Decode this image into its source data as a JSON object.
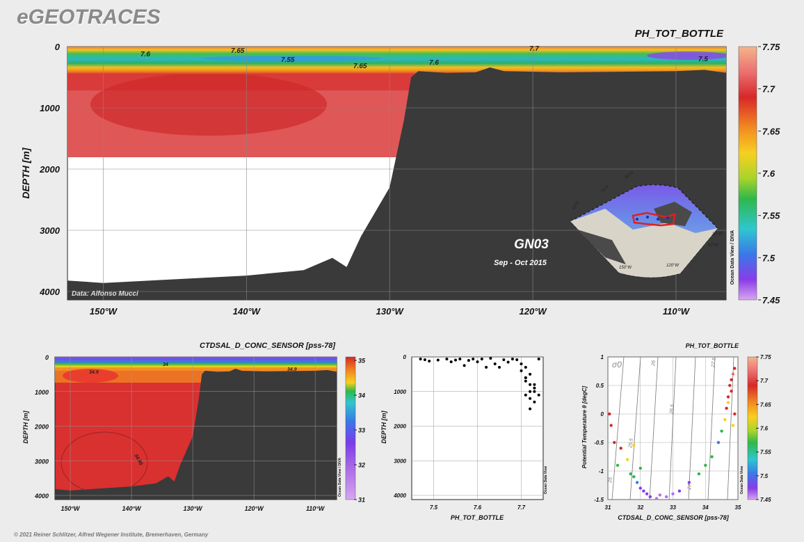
{
  "header": {
    "logo": "eGEOTRACES"
  },
  "footer": {
    "credit": "© 2021 Reiner Schlitzer, Alfred Wegener Institute, Bremerhaven, Germany"
  },
  "main_section": {
    "title": "PH_TOT_BOTTLE",
    "ylabel": "DEPTH [m]",
    "ylim": [
      0,
      4000
    ],
    "yticks": [
      "0",
      "1000",
      "2000",
      "3000",
      "4000"
    ],
    "xticks": [
      "150°W",
      "140°W",
      "130°W",
      "120°W",
      "110°W"
    ],
    "xtick_values": [
      -150,
      -140,
      -130,
      -120,
      -110
    ],
    "xlim": [
      -152.5,
      -106.5
    ],
    "contour_labels": [
      "7.6",
      "7.65",
      "7.55",
      "7.65",
      "7.6",
      "7.7",
      "7.5"
    ],
    "cruise": "GN03",
    "dates": "Sep - Oct 2015",
    "data_credit": "Data: Alfonso Mucci",
    "odv_credit": "Ocean Data View / DIVA",
    "map_lat_labels": [
      "80°N",
      "75°N",
      "65°N"
    ],
    "map_lon_labels": [
      "150°W",
      "120°W",
      "60°W",
      "30°W"
    ]
  },
  "colorbar_main": {
    "ticks": [
      "7.75",
      "7.7",
      "7.65",
      "7.6",
      "7.55",
      "7.5",
      "7.45"
    ],
    "range": [
      7.45,
      7.75
    ]
  },
  "sal_section": {
    "title": "CTDSAL_D_CONC_SENSOR [pss-78]",
    "ylabel": "DEPTH [m]",
    "yticks": [
      "0",
      "1000",
      "2000",
      "3000",
      "4000"
    ],
    "xticks": [
      "150°W",
      "140°W",
      "130°W",
      "120°W",
      "110°W"
    ],
    "contour_labels": [
      "34.9",
      "34",
      "34.9",
      "34.95"
    ],
    "odv_credit": "Ocean Data View / DIVA"
  },
  "colorbar_sal": {
    "ticks": [
      "35",
      "34",
      "33",
      "32",
      "31"
    ],
    "range": [
      31,
      35
    ]
  },
  "scatter_panel": {
    "xlabel": "PH_TOT_BOTTLE",
    "ylabel": "DEPTH [m]",
    "xticks": [
      "7.5",
      "7.6",
      "7.7"
    ],
    "yticks": [
      "0",
      "1000",
      "2000",
      "3000",
      "4000"
    ],
    "odv_credit": "Ocean Data View"
  },
  "ts_panel": {
    "title": "PH_TOT_BOTTLE",
    "xlabel": "CTDSAL_D_CONC_SENSOR [pss-78]",
    "ylabel": "Potential Temperature θ [degC]",
    "xticks": [
      "31",
      "32",
      "33",
      "34",
      "35"
    ],
    "yticks": [
      "1",
      "0.5",
      "0",
      "-0.5",
      "-1",
      "-1.5"
    ],
    "sigma_label": "σ0",
    "isopycnal_labels": [
      "25",
      "25.5",
      "26",
      "26.5",
      "27",
      "27.5"
    ],
    "odv_credit": "Ocean Data View"
  },
  "colorbar_ts": {
    "ticks": [
      "7.75",
      "7.7",
      "7.65",
      "7.6",
      "7.55",
      "7.5",
      "7.45"
    ]
  },
  "chart_data": [
    {
      "type": "heatmap",
      "title": "PH_TOT_BOTTLE",
      "ylabel": "DEPTH [m]",
      "xlim": [
        -152.5,
        -106.5
      ],
      "ylim": [
        4000,
        0
      ],
      "colorbar_range": [
        7.45,
        7.75
      ],
      "seafloor_depth": {
        "lon": [
          -152.5,
          -150,
          -145,
          -140,
          -136,
          -134,
          -133,
          -132,
          -131,
          -130,
          -129,
          -128.5,
          -128,
          -126,
          -124,
          -123,
          -122,
          -118,
          -114,
          -110,
          -108,
          -106.5
        ],
        "depth": [
          3820,
          3860,
          3800,
          3740,
          3650,
          3450,
          3600,
          3100,
          2700,
          2300,
          1200,
          500,
          400,
          430,
          420,
          340,
          400,
          420,
          410,
          400,
          380,
          430
        ]
      }
    },
    {
      "type": "heatmap",
      "title": "CTDSAL_D_CONC_SENSOR [pss-78]",
      "ylabel": "DEPTH [m]",
      "colorbar_range": [
        31,
        35
      ]
    },
    {
      "type": "scatter",
      "xlabel": "PH_TOT_BOTTLE",
      "ylabel": "DEPTH [m]",
      "x": [
        7.47,
        7.48,
        7.49,
        7.51,
        7.53,
        7.54,
        7.55,
        7.56,
        7.57,
        7.58,
        7.59,
        7.6,
        7.61,
        7.62,
        7.63,
        7.64,
        7.65,
        7.66,
        7.67,
        7.68,
        7.69,
        7.7,
        7.71,
        7.71,
        7.72,
        7.72,
        7.73,
        7.73,
        7.74,
        7.74,
        7.7,
        7.71,
        7.72,
        7.71,
        7.72,
        7.73,
        7.72,
        7.73,
        7.71
      ],
      "y": [
        60,
        80,
        120,
        90,
        60,
        140,
        90,
        60,
        250,
        100,
        60,
        140,
        60,
        300,
        40,
        200,
        300,
        80,
        150,
        60,
        80,
        400,
        600,
        700,
        800,
        500,
        900,
        1000,
        1100,
        60,
        200,
        300,
        1500,
        1100,
        1200,
        1300,
        1000,
        800,
        600
      ],
      "xlim": [
        7.45,
        7.75
      ],
      "ylim": [
        4000,
        0
      ]
    },
    {
      "type": "scatter",
      "title": "PH_TOT_BOTTLE",
      "xlabel": "CTDSAL_D_CONC_SENSOR [pss-78]",
      "ylabel": "Potential Temperature θ [degC]",
      "xlim": [
        31,
        35
      ],
      "ylim": [
        -1.5,
        1
      ],
      "x": [
        31.1,
        31.2,
        31.4,
        31.6,
        31.7,
        31.8,
        31.9,
        32.0,
        32.1,
        32.2,
        32.3,
        32.5,
        32.6,
        32.8,
        33.0,
        33.2,
        33.5,
        33.8,
        34.0,
        34.2,
        34.4,
        34.5,
        34.6,
        34.65,
        34.7,
        34.75,
        34.8,
        34.85,
        34.9,
        34.7,
        34.8,
        34.85,
        34.9,
        31.05,
        31.3,
        31.8,
        32.0
      ],
      "y": [
        -0.2,
        -0.5,
        -0.6,
        -0.8,
        -1.05,
        -1.1,
        -1.2,
        -1.3,
        -1.35,
        -1.4,
        -1.45,
        -1.48,
        -1.42,
        -1.45,
        -1.4,
        -1.35,
        -1.2,
        -1.05,
        -0.9,
        -0.75,
        -0.5,
        -0.3,
        -0.1,
        0.1,
        0.3,
        0.5,
        0.6,
        0.7,
        0.8,
        0.2,
        0.4,
        -0.2,
        0.0,
        0.0,
        -0.9,
        -0.55,
        -0.95
      ],
      "ph": [
        7.7,
        7.7,
        7.68,
        7.65,
        7.6,
        7.62,
        7.55,
        7.5,
        7.52,
        7.5,
        7.48,
        7.47,
        7.47,
        7.46,
        7.47,
        7.5,
        7.52,
        7.58,
        7.6,
        7.62,
        7.55,
        7.6,
        7.65,
        7.68,
        7.7,
        7.72,
        7.72,
        7.73,
        7.72,
        7.65,
        7.7,
        7.66,
        7.71,
        7.68,
        7.62,
        7.64,
        7.58
      ]
    }
  ]
}
